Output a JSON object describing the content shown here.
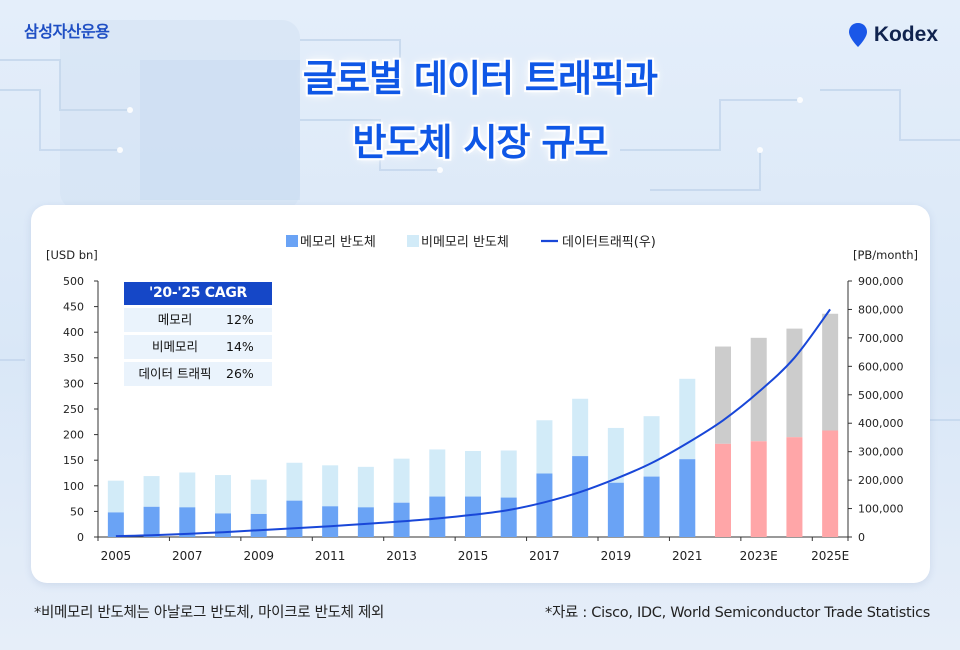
{
  "brand": "삼성자산운용",
  "logo": {
    "text": "Kodex",
    "icon": "location-pin-icon"
  },
  "title": {
    "line1": "글로벌 데이터 트래픽과",
    "line2": "반도체 시장 규모"
  },
  "colors": {
    "memory": "#6aa3f5",
    "non_memory": "#d2ebf8",
    "forecast_memory": "#ffa6a8",
    "forecast_non_memory": "#cccccc",
    "traffic": "#1947d8",
    "title": "#0f57e6"
  },
  "cagr_box": {
    "title": "'20-'25 CAGR",
    "rows": [
      {
        "name": "메모리",
        "value": "12%"
      },
      {
        "name": "비메모리",
        "value": "14%"
      },
      {
        "name": "데이터 트래픽",
        "value": "26%"
      }
    ]
  },
  "footnotes": {
    "left": "*비메모리 반도체는 아날로그 반도체, 마이크로 반도체 제외",
    "right": "*자료 : Cisco, IDC, World Semiconductor Trade Statistics"
  },
  "chart_data": {
    "type": "bar",
    "stacked": true,
    "categories": [
      "2005",
      "2006",
      "2007",
      "2008",
      "2009",
      "2010",
      "2011",
      "2012",
      "2013",
      "2014",
      "2015",
      "2016",
      "2017",
      "2018",
      "2019",
      "2020",
      "2021",
      "2022E",
      "2023E",
      "2024E",
      "2025E"
    ],
    "x_tick_labels": [
      "2005",
      "2007",
      "2009",
      "2011",
      "2013",
      "2015",
      "2017",
      "2019",
      "2021",
      "2023E",
      "2025E"
    ],
    "forecast_from_index": 17,
    "ylabel_left": "[USD bn]",
    "ylabel_right": "[PB/month]",
    "ylim_left": [
      0,
      500
    ],
    "ylim_right": [
      0,
      900000
    ],
    "yticks_left": [
      "0",
      "50",
      "100",
      "150",
      "200",
      "250",
      "300",
      "350",
      "400",
      "450",
      "500"
    ],
    "yticks_right": [
      "0",
      "100,000",
      "200,000",
      "300,000",
      "400,000",
      "500,000",
      "600,000",
      "700,000",
      "800,000",
      "900,000"
    ],
    "legend_position": "top",
    "grid": false,
    "series": [
      {
        "name": "메모리 반도체",
        "axis": "left",
        "kind": "bar",
        "values": [
          48,
          59,
          58,
          46,
          45,
          71,
          60,
          58,
          67,
          79,
          79,
          77,
          124,
          158,
          106,
          118,
          152,
          182,
          187,
          195,
          208
        ]
      },
      {
        "name": "비메모리 반도체",
        "axis": "left",
        "kind": "bar",
        "values": [
          62,
          60,
          68,
          75,
          67,
          74,
          80,
          79,
          86,
          92,
          89,
          92,
          104,
          112,
          107,
          118,
          157,
          190,
          202,
          212,
          228
        ]
      },
      {
        "name": "데이터트래픽(우)",
        "axis": "right",
        "kind": "line",
        "values": [
          3000,
          6000,
          11000,
          17000,
          24000,
          31000,
          38000,
          46000,
          55000,
          65000,
          78000,
          95000,
          122000,
          158000,
          205000,
          260000,
          330000,
          410000,
          510000,
          630000,
          800000
        ]
      }
    ]
  }
}
